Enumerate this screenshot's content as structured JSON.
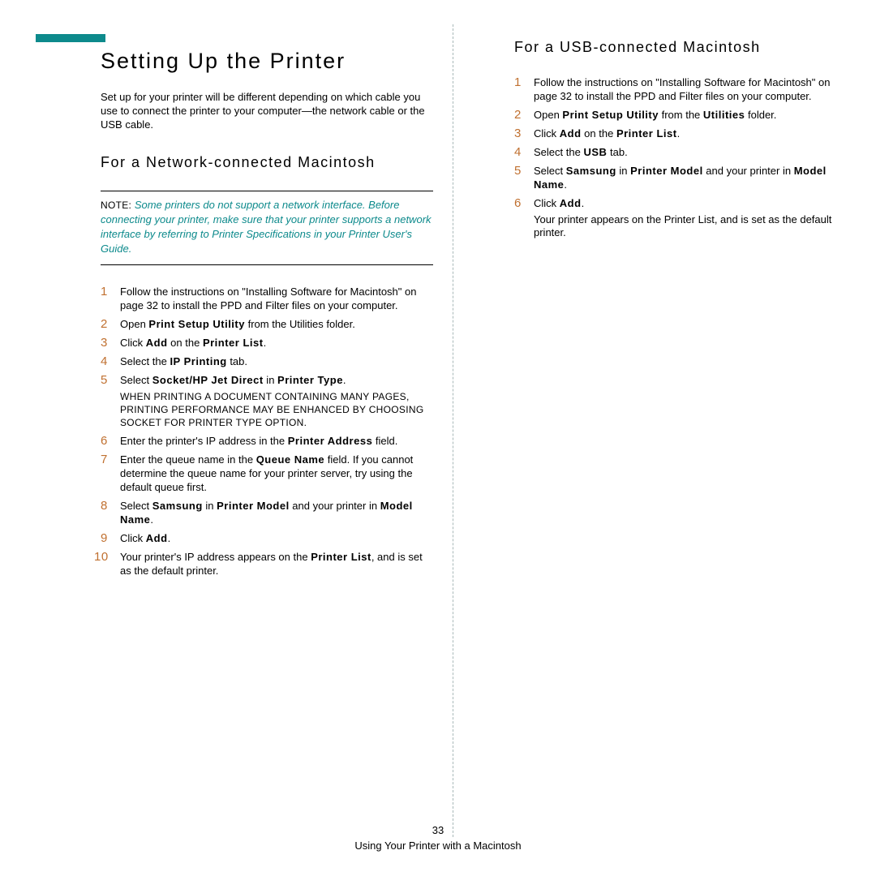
{
  "colors": {
    "accent": "#0d8a8c",
    "step_number": "#c07030",
    "text": "#000000",
    "divider": "#a8b8b8",
    "background": "#ffffff"
  },
  "left": {
    "title": "Setting Up the Printer",
    "intro": "Set up for your printer will be different depending on which cable you use to connect the printer to your computer—the network cable or the USB cable.",
    "subhead": "For a Network-connected Macintosh",
    "note_label": "NOTE",
    "note_text": "Some printers do not support a network interface. Before connecting your printer, make sure that your printer supports a network interface by referring to Printer Specifications in your Printer User's Guide.",
    "steps": [
      {
        "n": "1",
        "pre": "Follow the instructions on \"Installing Software for Macintosh\" on page 32 to install the PPD and Filter files on your computer."
      },
      {
        "n": "2",
        "pre": "Open ",
        "b": "Print Setup Utility",
        "post": " from the Utilities folder."
      },
      {
        "n": "3",
        "pre": "Click ",
        "b": "Add",
        "post": " on the ",
        "b2": "Printer List",
        "post2": "."
      },
      {
        "n": "4",
        "pre": "Select the ",
        "b": "IP Printing",
        "post": " tab."
      },
      {
        "n": "5",
        "pre": "Select ",
        "b": "Socket/HP Jet Direct",
        "post": " in ",
        "b2": "Printer Type",
        "post2": ".",
        "sub": "WHEN PRINTING A DOCUMENT CONTAINING MANY PAGES, PRINTING PERFORMANCE MAY BE ENHANCED BY CHOOSING SOCKET FOR PRINTER TYPE OPTION."
      },
      {
        "n": "6",
        "pre": "Enter the printer's IP address in the ",
        "b": "Printer Address",
        "post": " field."
      },
      {
        "n": "7",
        "pre": "Enter the queue name in the ",
        "b": "Queue Name",
        "post": " field. If you cannot determine the queue name for your printer server, try using the default queue first."
      },
      {
        "n": "8",
        "pre": "Select ",
        "b": "Samsung",
        "post": " in ",
        "b2": "Printer Model",
        "post2": " and your printer in ",
        "b3": "Model Name",
        "post3": "."
      },
      {
        "n": "9",
        "pre": "Click ",
        "b": "Add",
        "post": "."
      },
      {
        "n": "10",
        "pre": "Your printer's IP address appears on the ",
        "b": "Printer List",
        "post": ", and is set as the default printer."
      }
    ]
  },
  "right": {
    "subhead": "For a USB-connected Macintosh",
    "steps": [
      {
        "n": "1",
        "pre": "Follow the instructions on \"Installing Software for Macintosh\" on page 32 to install the PPD and Filter files on your computer."
      },
      {
        "n": "2",
        "pre": "Open ",
        "b": "Print Setup Utility",
        "post": " from the ",
        "b2": "Utilities",
        "post2": " folder."
      },
      {
        "n": "3",
        "pre": "Click ",
        "b": "Add",
        "post": " on the ",
        "b2": "Printer List",
        "post2": "."
      },
      {
        "n": "4",
        "pre": "Select the ",
        "b": "USB",
        "post": " tab."
      },
      {
        "n": "5",
        "pre": "Select ",
        "b": "Samsung",
        "post": " in ",
        "b2": "Printer Model",
        "post2": " and your printer in ",
        "b3": "Model Name",
        "post3": "."
      },
      {
        "n": "6",
        "pre": "Click ",
        "b": "Add",
        "post": ".",
        "sub2": "Your printer appears on the ",
        "sub2b": "Printer List",
        "sub2post": ", and is set as the default printer."
      }
    ]
  },
  "footer": {
    "page": "33",
    "line": "Using Your Printer with a Macintosh"
  }
}
